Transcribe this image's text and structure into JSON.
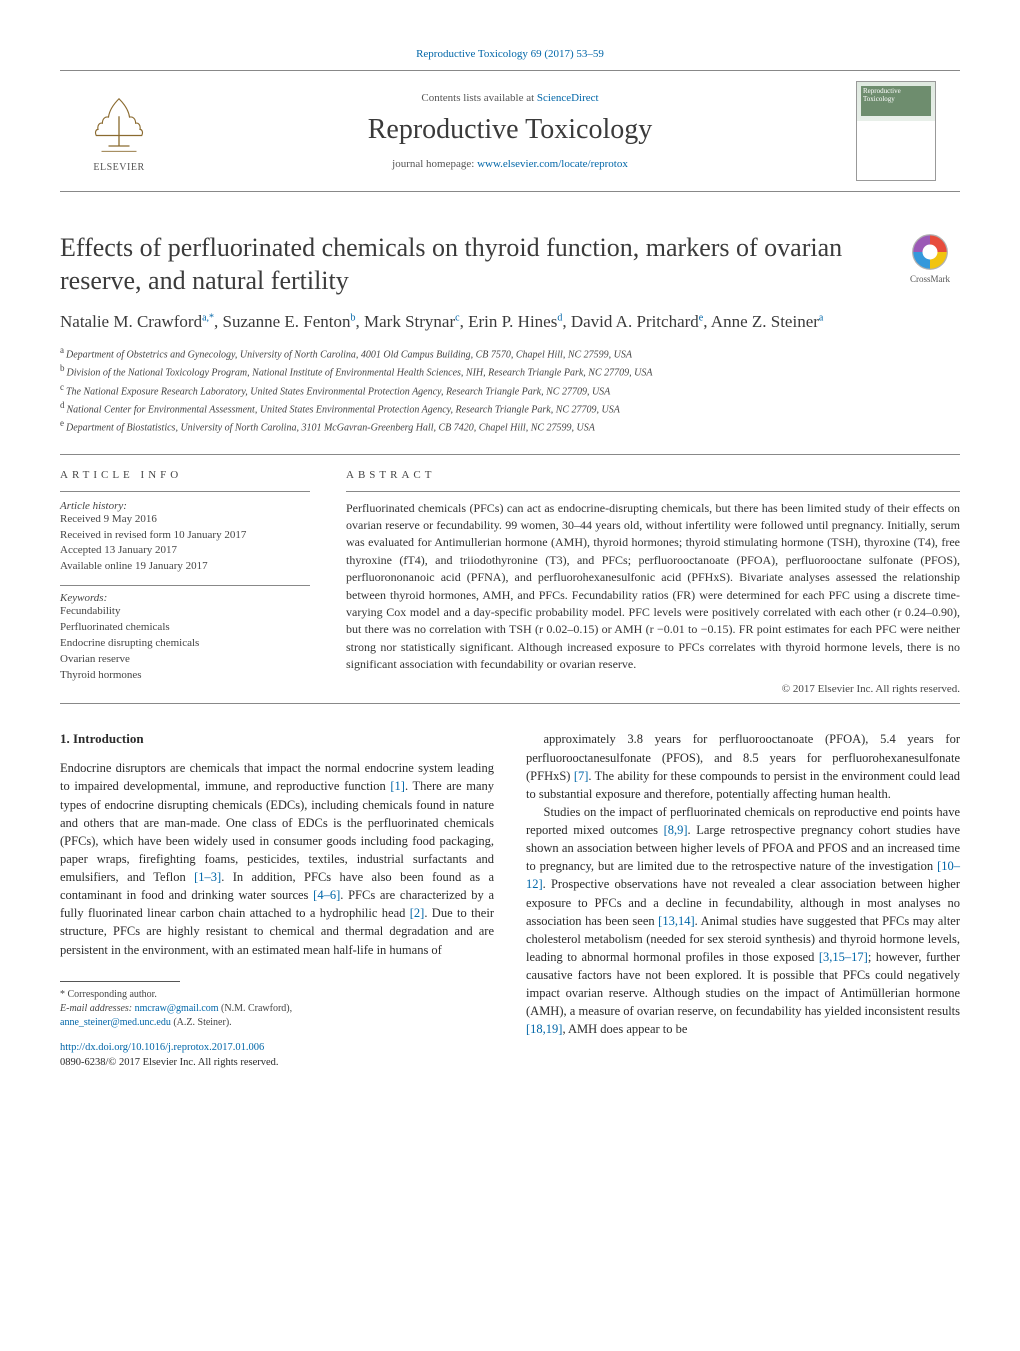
{
  "colors": {
    "link": "#0066a8",
    "text": "#2a2a2a",
    "muted": "#555555",
    "rule": "#888888",
    "bg": "#ffffff"
  },
  "typography": {
    "base_family": "Times New Roman / Georgia serif",
    "title_size_pt": 20,
    "journal_name_size_pt": 22,
    "body_size_pt": 9.5,
    "abstract_size_pt": 9
  },
  "header": {
    "citation": "Reproductive Toxicology 69 (2017) 53–59",
    "publisher_label": "ELSEVIER",
    "contents_prefix": "Contents lists available at ",
    "contents_linktext": "ScienceDirect",
    "journal_name": "Reproductive Toxicology",
    "homepage_prefix": "journal homepage: ",
    "homepage_linktext": "www.elsevier.com/locate/reprotox",
    "cover_title": "Reproductive Toxicology"
  },
  "article": {
    "title": "Effects of perfluorinated chemicals on thyroid function, markers of ovarian reserve, and natural fertility",
    "crossmark_label": "CrossMark",
    "authors_html": "Natalie M. Crawford<sup>a,*</sup>, Suzanne E. Fenton<sup>b</sup>, Mark Strynar<sup>c</sup>, Erin P. Hines<sup>d</sup>, David A. Pritchard<sup>e</sup>, Anne Z. Steiner<sup>a</sup>",
    "affiliations": [
      {
        "key": "a",
        "text": "Department of Obstetrics and Gynecology, University of North Carolina, 4001 Old Campus Building, CB 7570, Chapel Hill, NC 27599, USA"
      },
      {
        "key": "b",
        "text": "Division of the National Toxicology Program, National Institute of Environmental Health Sciences, NIH, Research Triangle Park, NC 27709, USA"
      },
      {
        "key": "c",
        "text": "The National Exposure Research Laboratory, United States Environmental Protection Agency, Research Triangle Park, NC 27709, USA"
      },
      {
        "key": "d",
        "text": "National Center for Environmental Assessment, United States Environmental Protection Agency, Research Triangle Park, NC 27709, USA"
      },
      {
        "key": "e",
        "text": "Department of Biostatistics, University of North Carolina, 3101 McGavran-Greenberg Hall, CB 7420, Chapel Hill, NC 27599, USA"
      }
    ]
  },
  "article_info": {
    "heading": "article info",
    "history_label": "Article history:",
    "history": [
      "Received 9 May 2016",
      "Received in revised form 10 January 2017",
      "Accepted 13 January 2017",
      "Available online 19 January 2017"
    ],
    "keywords_label": "Keywords:",
    "keywords": [
      "Fecundability",
      "Perfluorinated chemicals",
      "Endocrine disrupting chemicals",
      "Ovarian reserve",
      "Thyroid hormones"
    ]
  },
  "abstract": {
    "heading": "abstract",
    "text": "Perfluorinated chemicals (PFCs) can act as endocrine-disrupting chemicals, but there has been limited study of their effects on ovarian reserve or fecundability. 99 women, 30–44 years old, without infertility were followed until pregnancy. Initially, serum was evaluated for Antimullerian hormone (AMH), thyroid hormones; thyroid stimulating hormone (TSH), thyroxine (T4), free thyroxine (fT4), and triiodothyronine (T3), and PFCs; perfluorooctanoate (PFOA), perfluorooctane sulfonate (PFOS), perfluorononanoic acid (PFNA), and perfluorohexanesulfonic acid (PFHxS). Bivariate analyses assessed the relationship between thyroid hormones, AMH, and PFCs. Fecundability ratios (FR) were determined for each PFC using a discrete time-varying Cox model and a day-specific probability model. PFC levels were positively correlated with each other (r 0.24–0.90), but there was no correlation with TSH (r 0.02–0.15) or AMH (r −0.01 to −0.15). FR point estimates for each PFC were neither strong nor statistically significant. Although increased exposure to PFCs correlates with thyroid hormone levels, there is no significant association with fecundability or ovarian reserve.",
    "copyright": "© 2017 Elsevier Inc. All rights reserved."
  },
  "body": {
    "section_heading": "1. Introduction",
    "para1": "Endocrine disruptors are chemicals that impact the normal endocrine system leading to impaired developmental, immune, and reproductive function [1]. There are many types of endocrine disrupting chemicals (EDCs), including chemicals found in nature and others that are man-made. One class of EDCs is the perfluorinated chemicals (PFCs), which have been widely used in consumer goods including food packaging, paper wraps, firefighting foams, pesticides, textiles, industrial surfactants and emulsifiers, and Teflon [1–3]. In addition, PFCs have also been found as a contaminant in food and drinking water sources [4–6]. PFCs are characterized by a fully fluorinated linear carbon chain attached to a hydrophilic head [2]. Due to their structure, PFCs are highly resistant to chemical and thermal degradation and are persistent in the environment, with an estimated mean half-life in humans of",
    "para2": "approximately 3.8 years for perfluorooctanoate (PFOA), 5.4 years for perfluorooctanesulfonate (PFOS), and 8.5 years for perfluorohexanesulfonate (PFHxS) [7]. The ability for these compounds to persist in the environment could lead to substantial exposure and therefore, potentially affecting human health.",
    "para3": "Studies on the impact of perfluorinated chemicals on reproductive end points have reported mixed outcomes [8,9]. Large retrospective pregnancy cohort studies have shown an association between higher levels of PFOA and PFOS and an increased time to pregnancy, but are limited due to the retrospective nature of the investigation [10–12]. Prospective observations have not revealed a clear association between higher exposure to PFCs and a decline in fecundability, although in most analyses no association has been seen [13,14]. Animal studies have suggested that PFCs may alter cholesterol metabolism (needed for sex steroid synthesis) and thyroid hormone levels, leading to abnormal hormonal profiles in those exposed [3,15–17]; however, further causative factors have not been explored. It is possible that PFCs could negatively impact ovarian reserve. Although studies on the impact of Antimüllerian hormone (AMH), a measure of ovarian reserve, on fecundability has yielded inconsistent results [18,19], AMH does appear to be",
    "refs_in_text": [
      "[1]",
      "[1–3]",
      "[4–6]",
      "[2]",
      "[7]",
      "[8,9]",
      "[10–12]",
      "[13,14]",
      "[3,15–17]",
      "[18,19]"
    ]
  },
  "footer": {
    "corresponding_label": "* Corresponding author.",
    "email_label": "E-mail addresses: ",
    "email1": "nmcraw@gmail.com",
    "email1_who": " (N.M. Crawford), ",
    "email2": "anne_steiner@med.unc.edu",
    "email2_who": " (A.Z. Steiner).",
    "doi_link": "http://dx.doi.org/10.1016/j.reprotox.2017.01.006",
    "issn_line": "0890-6238/© 2017 Elsevier Inc. All rights reserved."
  }
}
